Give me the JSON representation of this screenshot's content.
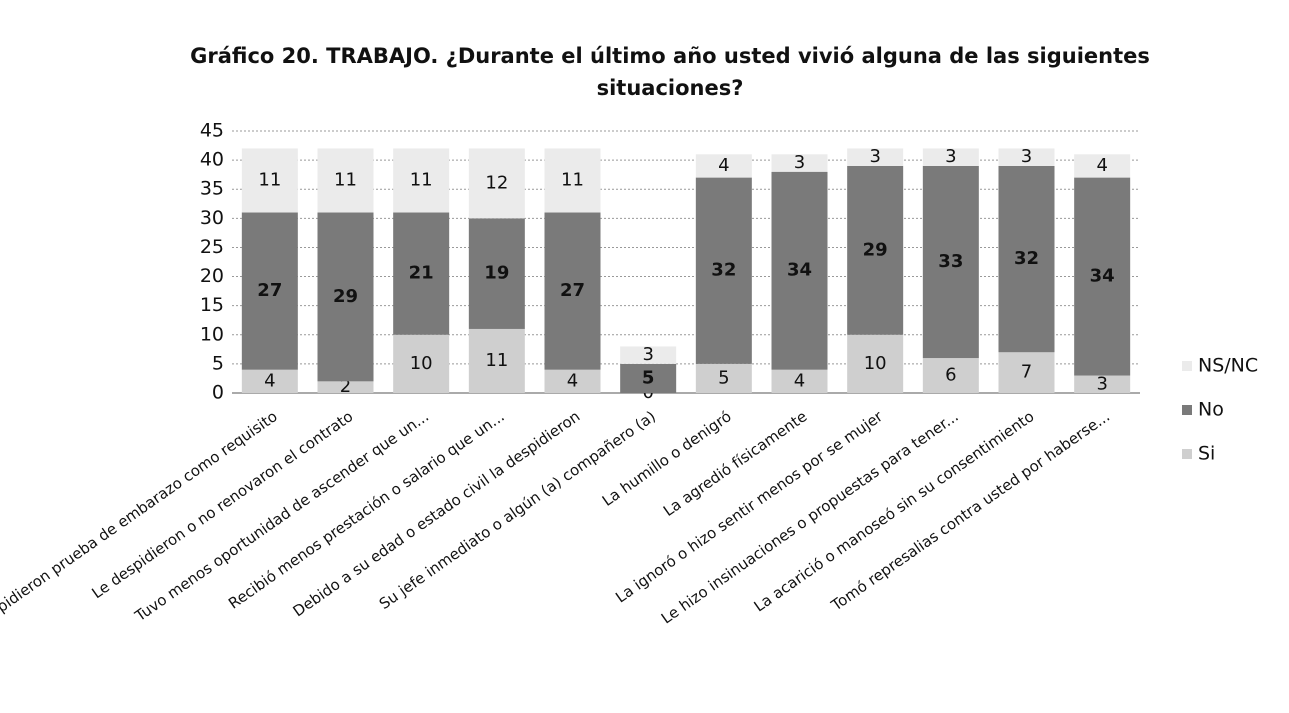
{
  "chart_data": {
    "type": "stacked_bar",
    "title": "Gráfico 20. TRABAJO. ¿Durante el último año usted vivió alguna de las siguientes situaciones?",
    "categories": [
      "Le pidieron prueba de embarazo como requisito",
      "Le despidieron o no renovaron el contrato",
      "Tuvo menos oportunidad de ascender que un...",
      "Recibió menos prestación o salario que un...",
      "Debido a su edad o estado civil la despidieron",
      "Su jefe inmediato o algún (a) compañero (a)",
      "La humillo o denigró",
      "La agredió físicamente",
      "La ignoró o hizo sentir menos por se mujer",
      "Le hizo insinuaciones o propuestas para tener...",
      "La acarició o manoseó sin su consentimiento",
      "Tomó represalias contra usted por haberse..."
    ],
    "series": [
      {
        "name": "Si",
        "color": "#cfcfcf",
        "values": [
          4,
          2,
          10,
          11,
          4,
          0,
          5,
          4,
          10,
          6,
          7,
          3
        ]
      },
      {
        "name": "No",
        "color": "#7a7a7a",
        "values": [
          27,
          29,
          21,
          19,
          27,
          5,
          32,
          34,
          29,
          33,
          32,
          34
        ]
      },
      {
        "name": "NS/NC",
        "color": "#ebebeb",
        "values": [
          11,
          11,
          11,
          12,
          11,
          3,
          4,
          3,
          3,
          3,
          3,
          4
        ]
      }
    ],
    "ylim": [
      0,
      45
    ],
    "yticks": [
      0,
      5,
      10,
      15,
      20,
      25,
      30,
      35,
      40,
      45
    ],
    "grid": true,
    "legend": "right"
  }
}
